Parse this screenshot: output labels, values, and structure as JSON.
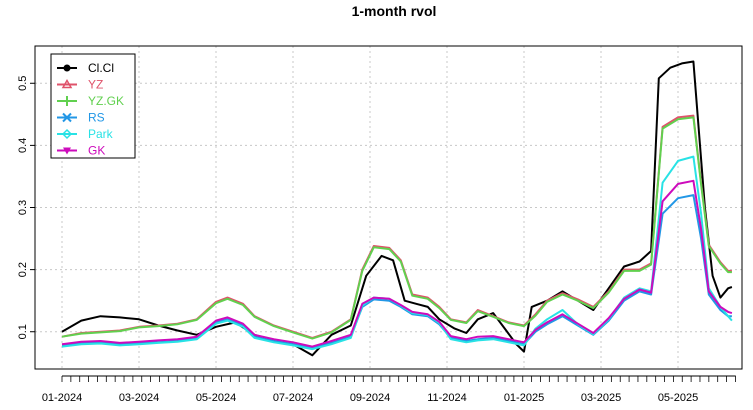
{
  "chart_data": {
    "type": "line",
    "title": "1-month rvol",
    "xlabel": "",
    "ylabel": "",
    "x_ticks": [
      "01-2024",
      "03-2024",
      "05-2024",
      "07-2024",
      "09-2024",
      "11-2024",
      "01-2025",
      "03-2025",
      "05-2025"
    ],
    "x_tick_months": [
      0,
      2,
      4,
      6,
      8,
      10,
      12,
      14,
      16
    ],
    "xlim_months": [
      0,
      17.5
    ],
    "y_ticks": [
      "0.1",
      "0.2",
      "0.3",
      "0.4",
      "0.5"
    ],
    "y_tick_values": [
      0.1,
      0.2,
      0.3,
      0.4,
      0.5
    ],
    "ylim": [
      0.04,
      0.56
    ],
    "grid": true,
    "legend_position": "top-left",
    "series": [
      {
        "name": "Cl.Cl",
        "color": "#000000",
        "marker": "circle",
        "points": [
          [
            0,
            0.1
          ],
          [
            0.5,
            0.118
          ],
          [
            1.0,
            0.125
          ],
          [
            1.5,
            0.123
          ],
          [
            2.0,
            0.12
          ],
          [
            2.5,
            0.11
          ],
          [
            3.0,
            0.102
          ],
          [
            3.5,
            0.095
          ],
          [
            4.0,
            0.108
          ],
          [
            4.5,
            0.115
          ],
          [
            5.0,
            0.095
          ],
          [
            5.5,
            0.085
          ],
          [
            6.0,
            0.08
          ],
          [
            6.5,
            0.062
          ],
          [
            7.0,
            0.095
          ],
          [
            7.5,
            0.11
          ],
          [
            7.9,
            0.19
          ],
          [
            8.3,
            0.222
          ],
          [
            8.6,
            0.215
          ],
          [
            8.9,
            0.15
          ],
          [
            9.2,
            0.145
          ],
          [
            9.5,
            0.14
          ],
          [
            9.8,
            0.12
          ],
          [
            10.2,
            0.105
          ],
          [
            10.5,
            0.098
          ],
          [
            10.8,
            0.12
          ],
          [
            11.2,
            0.13
          ],
          [
            11.5,
            0.105
          ],
          [
            11.8,
            0.08
          ],
          [
            12.0,
            0.068
          ],
          [
            12.2,
            0.14
          ],
          [
            12.6,
            0.15
          ],
          [
            13.0,
            0.165
          ],
          [
            13.4,
            0.15
          ],
          [
            13.8,
            0.135
          ],
          [
            14.2,
            0.17
          ],
          [
            14.6,
            0.205
          ],
          [
            15.0,
            0.213
          ],
          [
            15.3,
            0.23
          ],
          [
            15.5,
            0.508
          ],
          [
            15.8,
            0.525
          ],
          [
            16.1,
            0.532
          ],
          [
            16.4,
            0.535
          ],
          [
            16.7,
            0.3
          ],
          [
            16.9,
            0.19
          ],
          [
            17.1,
            0.155
          ],
          [
            17.3,
            0.17
          ],
          [
            17.4,
            0.172
          ]
        ]
      },
      {
        "name": "YZ",
        "color": "#DF536B",
        "marker": "triangle",
        "points": [
          [
            0,
            0.092
          ],
          [
            0.5,
            0.098
          ],
          [
            1.0,
            0.1
          ],
          [
            1.5,
            0.102
          ],
          [
            2.0,
            0.108
          ],
          [
            2.5,
            0.11
          ],
          [
            3.0,
            0.113
          ],
          [
            3.5,
            0.12
          ],
          [
            4.0,
            0.148
          ],
          [
            4.3,
            0.155
          ],
          [
            4.7,
            0.145
          ],
          [
            5.0,
            0.125
          ],
          [
            5.5,
            0.11
          ],
          [
            6.0,
            0.1
          ],
          [
            6.5,
            0.09
          ],
          [
            7.0,
            0.1
          ],
          [
            7.5,
            0.12
          ],
          [
            7.8,
            0.2
          ],
          [
            8.1,
            0.238
          ],
          [
            8.5,
            0.235
          ],
          [
            8.8,
            0.215
          ],
          [
            9.1,
            0.16
          ],
          [
            9.5,
            0.155
          ],
          [
            9.8,
            0.14
          ],
          [
            10.1,
            0.12
          ],
          [
            10.5,
            0.115
          ],
          [
            10.8,
            0.135
          ],
          [
            11.2,
            0.125
          ],
          [
            11.6,
            0.115
          ],
          [
            12.0,
            0.11
          ],
          [
            12.3,
            0.128
          ],
          [
            12.6,
            0.15
          ],
          [
            13.0,
            0.162
          ],
          [
            13.4,
            0.152
          ],
          [
            13.8,
            0.14
          ],
          [
            14.2,
            0.165
          ],
          [
            14.6,
            0.2
          ],
          [
            15.0,
            0.2
          ],
          [
            15.3,
            0.21
          ],
          [
            15.6,
            0.43
          ],
          [
            16.0,
            0.445
          ],
          [
            16.4,
            0.448
          ],
          [
            16.6,
            0.34
          ],
          [
            16.8,
            0.24
          ],
          [
            17.1,
            0.212
          ],
          [
            17.3,
            0.198
          ],
          [
            17.4,
            0.198
          ]
        ]
      },
      {
        "name": "YZ.GK",
        "color": "#61D04F",
        "marker": "plus",
        "points": [
          [
            0,
            0.092
          ],
          [
            0.5,
            0.097
          ],
          [
            1.0,
            0.099
          ],
          [
            1.5,
            0.101
          ],
          [
            2.0,
            0.107
          ],
          [
            2.5,
            0.109
          ],
          [
            3.0,
            0.112
          ],
          [
            3.5,
            0.119
          ],
          [
            4.0,
            0.146
          ],
          [
            4.3,
            0.153
          ],
          [
            4.7,
            0.143
          ],
          [
            5.0,
            0.124
          ],
          [
            5.5,
            0.109
          ],
          [
            6.0,
            0.099
          ],
          [
            6.5,
            0.089
          ],
          [
            7.0,
            0.099
          ],
          [
            7.5,
            0.119
          ],
          [
            7.8,
            0.198
          ],
          [
            8.1,
            0.236
          ],
          [
            8.5,
            0.233
          ],
          [
            8.8,
            0.213
          ],
          [
            9.1,
            0.158
          ],
          [
            9.5,
            0.153
          ],
          [
            9.8,
            0.138
          ],
          [
            10.1,
            0.119
          ],
          [
            10.5,
            0.114
          ],
          [
            10.8,
            0.133
          ],
          [
            11.2,
            0.124
          ],
          [
            11.6,
            0.114
          ],
          [
            12.0,
            0.109
          ],
          [
            12.3,
            0.126
          ],
          [
            12.6,
            0.148
          ],
          [
            13.0,
            0.16
          ],
          [
            13.4,
            0.15
          ],
          [
            13.8,
            0.138
          ],
          [
            14.2,
            0.163
          ],
          [
            14.6,
            0.198
          ],
          [
            15.0,
            0.198
          ],
          [
            15.3,
            0.208
          ],
          [
            15.6,
            0.427
          ],
          [
            16.0,
            0.442
          ],
          [
            16.4,
            0.445
          ],
          [
            16.6,
            0.337
          ],
          [
            16.8,
            0.238
          ],
          [
            17.1,
            0.21
          ],
          [
            17.3,
            0.196
          ],
          [
            17.4,
            0.196
          ]
        ]
      },
      {
        "name": "RS",
        "color": "#2297E6",
        "marker": "cross",
        "points": [
          [
            0,
            0.078
          ],
          [
            0.5,
            0.082
          ],
          [
            1.0,
            0.083
          ],
          [
            1.5,
            0.08
          ],
          [
            2.0,
            0.082
          ],
          [
            2.5,
            0.083
          ],
          [
            3.0,
            0.085
          ],
          [
            3.5,
            0.09
          ],
          [
            4.0,
            0.115
          ],
          [
            4.3,
            0.12
          ],
          [
            4.7,
            0.11
          ],
          [
            5.0,
            0.092
          ],
          [
            5.5,
            0.085
          ],
          [
            6.0,
            0.08
          ],
          [
            6.5,
            0.074
          ],
          [
            7.0,
            0.082
          ],
          [
            7.5,
            0.092
          ],
          [
            7.8,
            0.14
          ],
          [
            8.1,
            0.152
          ],
          [
            8.5,
            0.15
          ],
          [
            8.8,
            0.14
          ],
          [
            9.1,
            0.128
          ],
          [
            9.5,
            0.125
          ],
          [
            9.8,
            0.112
          ],
          [
            10.1,
            0.09
          ],
          [
            10.5,
            0.085
          ],
          [
            10.8,
            0.088
          ],
          [
            11.2,
            0.09
          ],
          [
            11.6,
            0.085
          ],
          [
            12.0,
            0.08
          ],
          [
            12.3,
            0.1
          ],
          [
            12.6,
            0.112
          ],
          [
            13.0,
            0.125
          ],
          [
            13.4,
            0.11
          ],
          [
            13.8,
            0.095
          ],
          [
            14.2,
            0.118
          ],
          [
            14.6,
            0.15
          ],
          [
            15.0,
            0.165
          ],
          [
            15.3,
            0.16
          ],
          [
            15.6,
            0.29
          ],
          [
            16.0,
            0.315
          ],
          [
            16.4,
            0.32
          ],
          [
            16.6,
            0.25
          ],
          [
            16.8,
            0.16
          ],
          [
            17.1,
            0.135
          ],
          [
            17.3,
            0.125
          ],
          [
            17.4,
            0.125
          ]
        ]
      },
      {
        "name": "Park",
        "color": "#28E2E5",
        "marker": "diamond",
        "points": [
          [
            0,
            0.076
          ],
          [
            0.5,
            0.08
          ],
          [
            1.0,
            0.081
          ],
          [
            1.5,
            0.078
          ],
          [
            2.0,
            0.08
          ],
          [
            2.5,
            0.082
          ],
          [
            3.0,
            0.084
          ],
          [
            3.5,
            0.088
          ],
          [
            4.0,
            0.113
          ],
          [
            4.3,
            0.118
          ],
          [
            4.7,
            0.108
          ],
          [
            5.0,
            0.09
          ],
          [
            5.5,
            0.083
          ],
          [
            6.0,
            0.078
          ],
          [
            6.5,
            0.072
          ],
          [
            7.0,
            0.08
          ],
          [
            7.5,
            0.09
          ],
          [
            7.8,
            0.142
          ],
          [
            8.1,
            0.155
          ],
          [
            8.5,
            0.153
          ],
          [
            8.8,
            0.142
          ],
          [
            9.1,
            0.13
          ],
          [
            9.5,
            0.127
          ],
          [
            9.8,
            0.114
          ],
          [
            10.1,
            0.088
          ],
          [
            10.5,
            0.083
          ],
          [
            10.8,
            0.086
          ],
          [
            11.2,
            0.088
          ],
          [
            11.6,
            0.083
          ],
          [
            12.0,
            0.078
          ],
          [
            12.3,
            0.105
          ],
          [
            12.6,
            0.12
          ],
          [
            13.0,
            0.135
          ],
          [
            13.4,
            0.112
          ],
          [
            13.8,
            0.096
          ],
          [
            14.2,
            0.12
          ],
          [
            14.6,
            0.155
          ],
          [
            15.0,
            0.17
          ],
          [
            15.3,
            0.165
          ],
          [
            15.6,
            0.34
          ],
          [
            16.0,
            0.375
          ],
          [
            16.4,
            0.382
          ],
          [
            16.6,
            0.29
          ],
          [
            16.8,
            0.17
          ],
          [
            17.1,
            0.14
          ],
          [
            17.3,
            0.125
          ],
          [
            17.4,
            0.118
          ]
        ]
      },
      {
        "name": "GK",
        "color": "#CD0BBC",
        "marker": "triangle-down",
        "points": [
          [
            0,
            0.08
          ],
          [
            0.5,
            0.084
          ],
          [
            1.0,
            0.085
          ],
          [
            1.5,
            0.082
          ],
          [
            2.0,
            0.084
          ],
          [
            2.5,
            0.086
          ],
          [
            3.0,
            0.088
          ],
          [
            3.5,
            0.092
          ],
          [
            4.0,
            0.118
          ],
          [
            4.3,
            0.123
          ],
          [
            4.7,
            0.113
          ],
          [
            5.0,
            0.095
          ],
          [
            5.5,
            0.088
          ],
          [
            6.0,
            0.083
          ],
          [
            6.5,
            0.076
          ],
          [
            7.0,
            0.085
          ],
          [
            7.5,
            0.095
          ],
          [
            7.8,
            0.145
          ],
          [
            8.1,
            0.155
          ],
          [
            8.5,
            0.153
          ],
          [
            8.8,
            0.143
          ],
          [
            9.1,
            0.132
          ],
          [
            9.5,
            0.128
          ],
          [
            9.8,
            0.116
          ],
          [
            10.1,
            0.093
          ],
          [
            10.5,
            0.088
          ],
          [
            10.8,
            0.092
          ],
          [
            11.2,
            0.093
          ],
          [
            11.6,
            0.088
          ],
          [
            12.0,
            0.083
          ],
          [
            12.3,
            0.103
          ],
          [
            12.6,
            0.115
          ],
          [
            13.0,
            0.128
          ],
          [
            13.4,
            0.113
          ],
          [
            13.8,
            0.098
          ],
          [
            14.2,
            0.122
          ],
          [
            14.6,
            0.153
          ],
          [
            15.0,
            0.168
          ],
          [
            15.3,
            0.163
          ],
          [
            15.6,
            0.31
          ],
          [
            16.0,
            0.338
          ],
          [
            16.4,
            0.343
          ],
          [
            16.6,
            0.265
          ],
          [
            16.8,
            0.165
          ],
          [
            17.1,
            0.14
          ],
          [
            17.3,
            0.132
          ],
          [
            17.4,
            0.13
          ]
        ]
      }
    ]
  }
}
